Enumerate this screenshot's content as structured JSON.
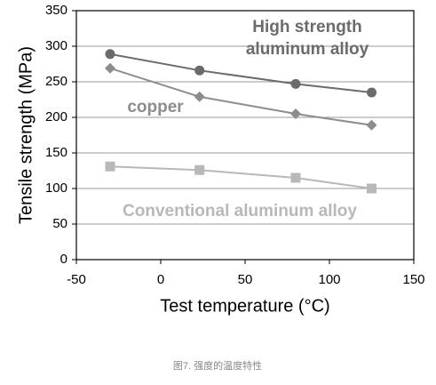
{
  "chart_data": {
    "type": "line",
    "x_label": "Test temperature (°C)",
    "y_label": "Tensile strength (MPa)",
    "caption": "图7. 强度的温度特性",
    "xlim": [
      -50,
      150
    ],
    "xticks": [
      -50,
      0,
      50,
      100,
      150
    ],
    "ylim": [
      0,
      350
    ],
    "yticks": [
      0,
      50,
      100,
      150,
      200,
      250,
      300,
      350
    ],
    "grid": true,
    "series": [
      {
        "name": "High strength aluminum alloy",
        "color": "#6b6b6b",
        "marker": "circle",
        "x": [
          -30,
          23,
          80,
          125
        ],
        "values": [
          289,
          266,
          247,
          235
        ]
      },
      {
        "name": "copper",
        "color": "#8c8c8c",
        "marker": "diamond",
        "x": [
          -30,
          23,
          80,
          125
        ],
        "values": [
          269,
          229,
          205,
          189
        ]
      },
      {
        "name": "Conventional aluminum alloy",
        "color": "#b8b8b8",
        "marker": "square",
        "x": [
          -30,
          23,
          80,
          125
        ],
        "values": [
          131,
          126,
          115,
          100
        ]
      }
    ]
  }
}
